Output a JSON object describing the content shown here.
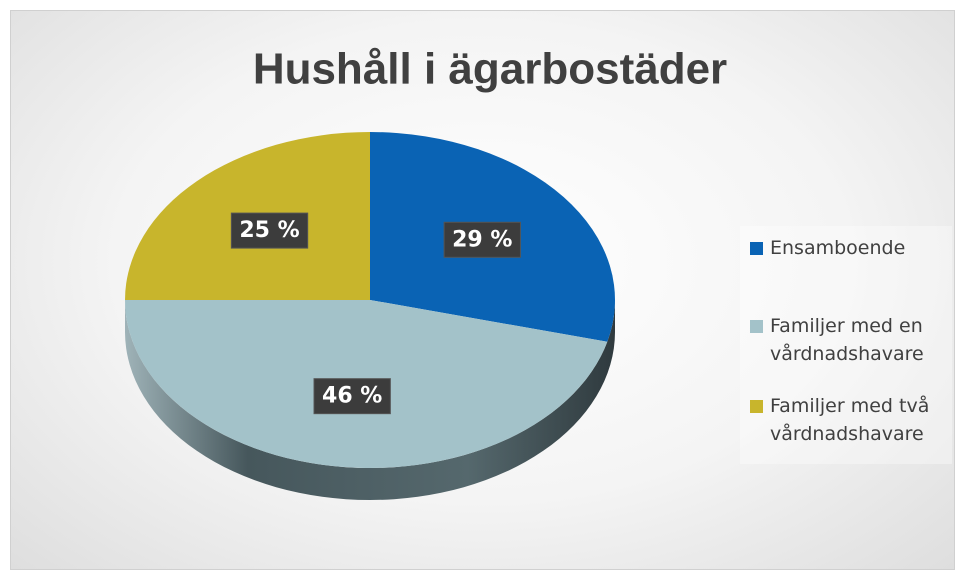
{
  "chart_data": {
    "type": "pie",
    "title": "Hushåll i ägarbostäder",
    "categories": [
      "Ensamboende",
      "Familjer med en vårdnadshavare",
      "Familjer med två vårdnadshavare"
    ],
    "values": [
      29,
      46,
      25
    ],
    "value_labels": [
      "29 %",
      "46 %",
      "25 %"
    ],
    "colors": [
      "#0a63b4",
      "#a3c2c9",
      "#c8b52c"
    ],
    "legend": "right"
  }
}
